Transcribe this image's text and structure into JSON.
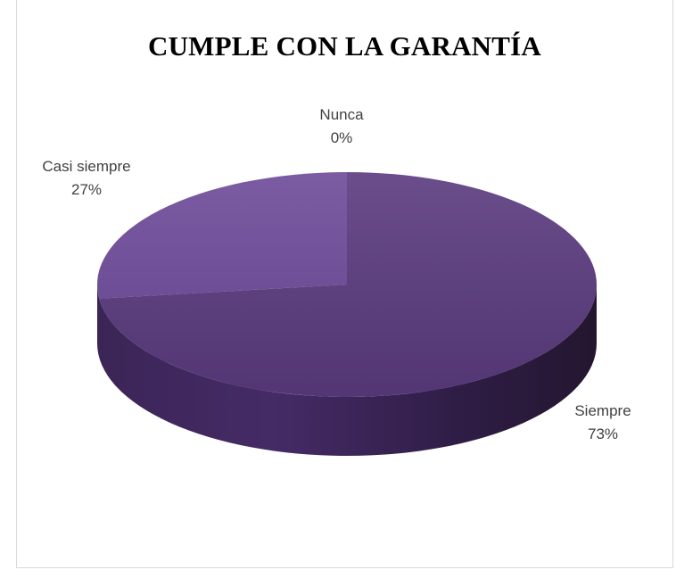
{
  "chart_data": {
    "type": "pie",
    "title": "CUMPLE CON LA GARANTÍA",
    "slices": [
      {
        "label": "Siempre",
        "value": 73,
        "percent_label": "73%",
        "color": "#5a3a7e"
      },
      {
        "label": "Casi siempre",
        "value": 27,
        "percent_label": "27%",
        "color": "#6d4a99"
      },
      {
        "label": "Nunca",
        "value": 0,
        "percent_label": "0%",
        "color": "#7a55a8"
      }
    ],
    "legend": "none",
    "style": "3d-pie"
  }
}
